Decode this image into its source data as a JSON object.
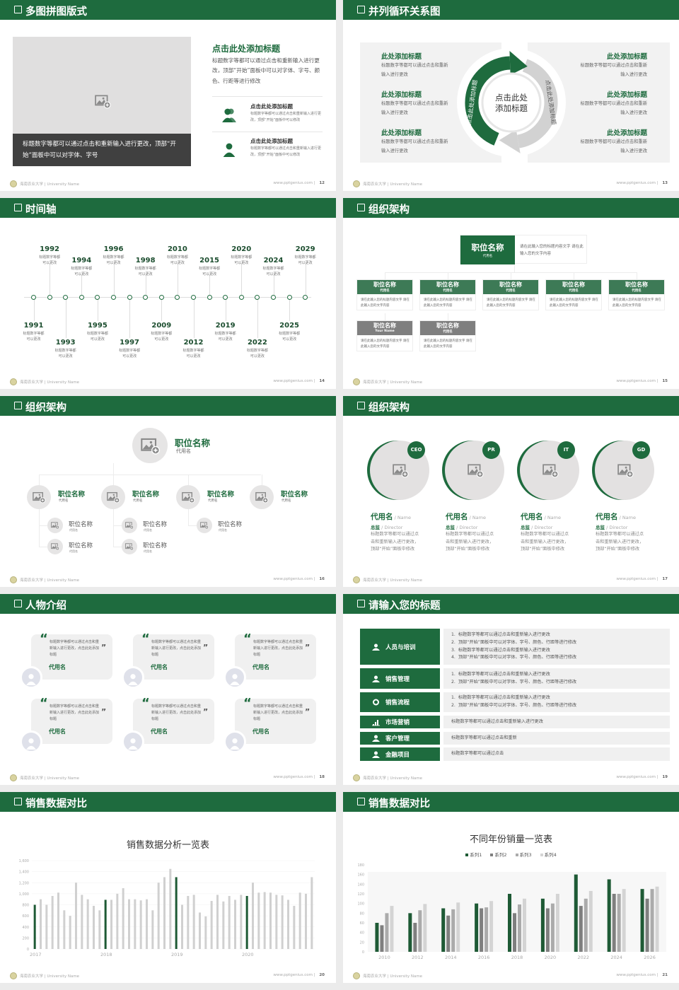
{
  "footer": {
    "school": "海南农业大学 | University Name",
    "site": "www.pptgenius.com"
  },
  "colors": {
    "primary": "#1e6b3e",
    "secondary_gray": "#7f7f7f",
    "light_gray": "#f0f0f0"
  },
  "s1": {
    "title": "多图拼图版式",
    "page": "12",
    "placeholder_icon": "image-add-icon",
    "caption": "标题数字等都可以通过点击和重新输入进行更改，顶部“开始”面板中可以对字体、字号",
    "heading": "点击此处添加标题",
    "body": "标题数字等都可以通过点击和重新输入进行更改，顶部“开始”面板中可以对字体、字号、颜色、行距等进行修改",
    "items": [
      {
        "icon": "users-icon",
        "title": "点击此处添加标题",
        "text": "标题数字等都可以通过点击和重新输入进行更改，顶部“开始”面板中可以修改"
      },
      {
        "icon": "user-icon",
        "title": "点击此处添加标题",
        "text": "标题数字等都可以通过点击和重新输入进行更改，顶部“开始”面板中可以修改"
      }
    ]
  },
  "s2": {
    "title": "并列循环关系图",
    "page": "13",
    "center_line1": "点击此处",
    "center_line2": "添加标题",
    "arc_left": "点击此处添加标题",
    "arc_right": "点击此处添加标题",
    "left": [
      {
        "title": "此处添加标题",
        "text": "标题数字等都可以通过点击和重新输入进行更改"
      },
      {
        "title": "此处添加标题",
        "text": "标题数字等都可以通过点击和重新输入进行更改"
      },
      {
        "title": "此处添加标题",
        "text": "标题数字等都可以通过点击和重新输入进行更改"
      }
    ],
    "right": [
      {
        "title": "此处添加标题",
        "text": "标题数字等都可以通过点击和重新输入进行更改"
      },
      {
        "title": "此处添加标题",
        "text": "标题数字等都可以通过点击和重新输入进行更改"
      },
      {
        "title": "此处添加标题",
        "text": "标题数字等都可以通过点击和重新输入进行更改"
      }
    ]
  },
  "s3": {
    "title": "时间轴",
    "page": "14",
    "events": [
      {
        "year": "1991",
        "text": "标题数字等都可以更改"
      },
      {
        "year": "1992",
        "text": "标题数字等都可以更改"
      },
      {
        "year": "1993",
        "text": "标题数字等都可以更改"
      },
      {
        "year": "1994",
        "text": "标题数字等都可以更改"
      },
      {
        "year": "1995",
        "text": "标题数字等都可以更改"
      },
      {
        "year": "1996",
        "text": "标题数字等都可以更改"
      },
      {
        "year": "1997",
        "text": "标题数字等都可以更改"
      },
      {
        "year": "1998",
        "text": "标题数字等都可以更改"
      },
      {
        "year": "2009",
        "text": "标题数字等都可以更改"
      },
      {
        "year": "2010",
        "text": "标题数字等都可以更改"
      },
      {
        "year": "2012",
        "text": "标题数字等都可以更改"
      },
      {
        "year": "2015",
        "text": "标题数字等都可以更改"
      },
      {
        "year": "2019",
        "text": "标题数字等都可以更改"
      },
      {
        "year": "2020",
        "text": "标题数字等都可以更改"
      },
      {
        "year": "2022",
        "text": "标题数字等都可以更改"
      },
      {
        "year": "2024",
        "text": "标题数字等都可以更改"
      },
      {
        "year": "2025",
        "text": "标题数字等都可以更改"
      },
      {
        "year": "2029",
        "text": "标题数字等都可以更改"
      }
    ]
  },
  "s4": {
    "title": "组织架构",
    "page": "15",
    "top": {
      "name": "职位名称",
      "sub": "代用名",
      "desc": "请在此输入您的标题内容文字 请在此输入您的文字内容"
    },
    "row1": [
      {
        "name": "职位名称",
        "sub": "代用名",
        "desc": "请在此输入您的标题内容文字 请在此输入您的文字内容"
      },
      {
        "name": "职位名称",
        "sub": "代用名",
        "desc": "请在此输入您的标题内容文字 请在此输入您的文字内容"
      },
      {
        "name": "职位名称",
        "sub": "代用名",
        "desc": "请在此输入您的标题内容文字 请在此输入您的文字内容"
      },
      {
        "name": "职位名称",
        "sub": "代用名",
        "desc": "请在此输入您的标题内容文字 请在此输入您的文字内容"
      },
      {
        "name": "职位名称",
        "sub": "代用名",
        "desc": "请在此输入您的标题内容文字 请在此输入您的文字内容"
      }
    ],
    "row2": [
      {
        "name": "职位名称",
        "sub": "Your Name",
        "desc": "请在此输入您的标题内容文字 请在此输入您的文字内容"
      },
      {
        "name": "职位名称",
        "sub": "代用名",
        "desc": "请在此输入您的标题内容文字 请在此输入您的文字内容"
      }
    ]
  },
  "s5": {
    "title": "组织架构",
    "page": "16",
    "top": {
      "name": "职位名称",
      "sub": "代用名"
    },
    "level2": [
      {
        "name": "职位名称",
        "sub": "代用名",
        "children": [
          {
            "name": "职位名称",
            "sub": "代用名"
          },
          {
            "name": "职位名称",
            "sub": "代用名"
          }
        ]
      },
      {
        "name": "职位名称",
        "sub": "代用名",
        "children": [
          {
            "name": "职位名称",
            "sub": "代用名"
          },
          {
            "name": "职位名称",
            "sub": "代用名"
          }
        ]
      },
      {
        "name": "职位名称",
        "sub": "代用名",
        "children": [
          {
            "name": "职位名称",
            "sub": "代用名"
          }
        ]
      },
      {
        "name": "职位名称",
        "sub": "代用名",
        "children": []
      }
    ]
  },
  "s6": {
    "title": "组织架构",
    "page": "17",
    "cards": [
      {
        "badge": "CEO",
        "name": "代用名",
        "name_en": " / Name",
        "role": "总监",
        "role_en": " /  Director",
        "text": "标题数字等都可以通过点击和重新输入进行更改，顶部“开始”面板中修改"
      },
      {
        "badge": "PR",
        "name": "代用名",
        "name_en": " / Name",
        "role": "总监",
        "role_en": " /  Director",
        "text": "标题数字等都可以通过点击和重新输入进行更改，顶部“开始”面板中修改"
      },
      {
        "badge": "IT",
        "name": "代用名",
        "name_en": " / Name",
        "role": "总监",
        "role_en": " /  Director",
        "text": "标题数字等都可以通过点击和重新输入进行更改，顶部“开始”面板中修改"
      },
      {
        "badge": "GD",
        "name": "代用名",
        "name_en": " / Name",
        "role": "总监",
        "role_en": " /  Director",
        "text": "标题数字等都可以通过点击和重新输入进行更改，顶部“开始”面板中修改"
      }
    ]
  },
  "s7": {
    "title": "人物介绍",
    "page": "18",
    "open_quote": "“",
    "close_quote": "”",
    "cards": [
      {
        "text": "标题数字等都可以通过点击和重新输入进行更改，点击此处添加标题",
        "name": "代用名"
      },
      {
        "text": "标题数字等都可以通过点击和重新输入进行更改，点击此处添加标题",
        "name": "代用名"
      },
      {
        "text": "标题数字等都可以通过点击和重新输入进行更改，点击此处添加标题",
        "name": "代用名"
      },
      {
        "text": "标题数字等都可以通过点击和重新输入进行更改，点击此处添加标题",
        "name": "代用名"
      },
      {
        "text": "标题数字等都可以通过点击和重新输入进行更改，点击此处添加标题",
        "name": "代用名"
      },
      {
        "text": "标题数字等都可以通过点击和重新输入进行更改，点击此处添加标题",
        "name": "代用名"
      }
    ]
  },
  "s8": {
    "title": "请输入您的标题",
    "page": "19",
    "rows": [
      {
        "icon": "training-icon",
        "label": "人员与培训",
        "lines": [
          "1.  标题数字等都可以通过点击和重新输入进行更改",
          "2.  顶部“开始”面板中可以对字体、字号、颜色、行距等进行修改",
          "3.  标题数字等都可以通过点击和重新输入进行更改",
          "4.  顶部“开始”面板中可以对字体、字号、颜色、行距等进行修改"
        ]
      },
      {
        "icon": "sales-management-icon",
        "label": "销售管理",
        "lines": [
          "1.  标题数字等都可以通过点击和重新输入进行更改",
          "2.  顶部“开始”面板中可以对字体、字号、颜色、行距等进行修改"
        ]
      },
      {
        "icon": "cycle-icon",
        "label": "销售流程",
        "lines": [
          "1.  标题数字等都可以通过点击和重新输入进行更改",
          "2.  顶部“开始”面板中可以对字体、字号、颜色、行距等进行修改"
        ]
      },
      {
        "icon": "bar-chart-icon",
        "label": "市场营销",
        "lines": [
          "标题数字等都可以通过点击和重新输入进行更改"
        ]
      },
      {
        "icon": "customers-icon",
        "label": "客户管理",
        "lines": [
          "标题数字等都可以通过点击和重新"
        ]
      },
      {
        "icon": "finance-icon",
        "label": "金融项目",
        "lines": [
          "标题数字等都可以通过点击"
        ]
      }
    ]
  },
  "s9": {
    "title": "销售数据对比",
    "page": "20"
  },
  "s10": {
    "title": "销售数据对比",
    "page": "21"
  },
  "chart_data": [
    {
      "type": "bar",
      "title": "销售数据分析一览表",
      "x_tick_labels": [
        "2017",
        "2018",
        "2019",
        "2020"
      ],
      "values": [
        800,
        900,
        800,
        960,
        1020,
        700,
        600,
        1200,
        980,
        900,
        780,
        700,
        890,
        890,
        1000,
        1100,
        900,
        900,
        880,
        900,
        700,
        1200,
        1300,
        1450,
        1300,
        800,
        960,
        980,
        660,
        590,
        870,
        980,
        860,
        960,
        890,
        980,
        960,
        1200,
        1020,
        1030,
        1020,
        980,
        970,
        890,
        780,
        1020,
        1000,
        1300
      ],
      "highlight_color": "#1e5a35",
      "bar_color": "#d0d0d0",
      "highlighted_every": 12,
      "ylim": [
        0,
        1600
      ],
      "y_ticks": [
        "0",
        "200",
        "400",
        "600",
        "800",
        "1,000",
        "1,200",
        "1,400",
        "1,600"
      ],
      "grid": true
    },
    {
      "type": "bar",
      "title": "不同年份销量一览表",
      "categories": [
        "2010",
        "2012",
        "2014",
        "2016",
        "2018",
        "2020",
        "2022",
        "2024",
        "2026"
      ],
      "series": [
        {
          "name": "系列1",
          "color": "#1e5a35",
          "values": [
            60,
            80,
            90,
            100,
            120,
            110,
            160,
            150,
            130
          ]
        },
        {
          "name": "系列2",
          "color": "#7f7f7f",
          "values": [
            55,
            60,
            75,
            90,
            80,
            90,
            95,
            120,
            110
          ]
        },
        {
          "name": "系列3",
          "color": "#ababab",
          "values": [
            80,
            86,
            88,
            92,
            98,
            100,
            110,
            120,
            130
          ]
        },
        {
          "name": "系列4",
          "color": "#d4d4d4",
          "values": [
            95,
            99,
            102,
            105,
            110,
            120,
            126,
            130,
            135
          ]
        }
      ],
      "ylim": [
        0,
        180
      ],
      "y_ticks": [
        "0",
        "20",
        "40",
        "60",
        "80",
        "100",
        "120",
        "140",
        "160",
        "180"
      ],
      "legend": "top",
      "grid": false
    }
  ]
}
